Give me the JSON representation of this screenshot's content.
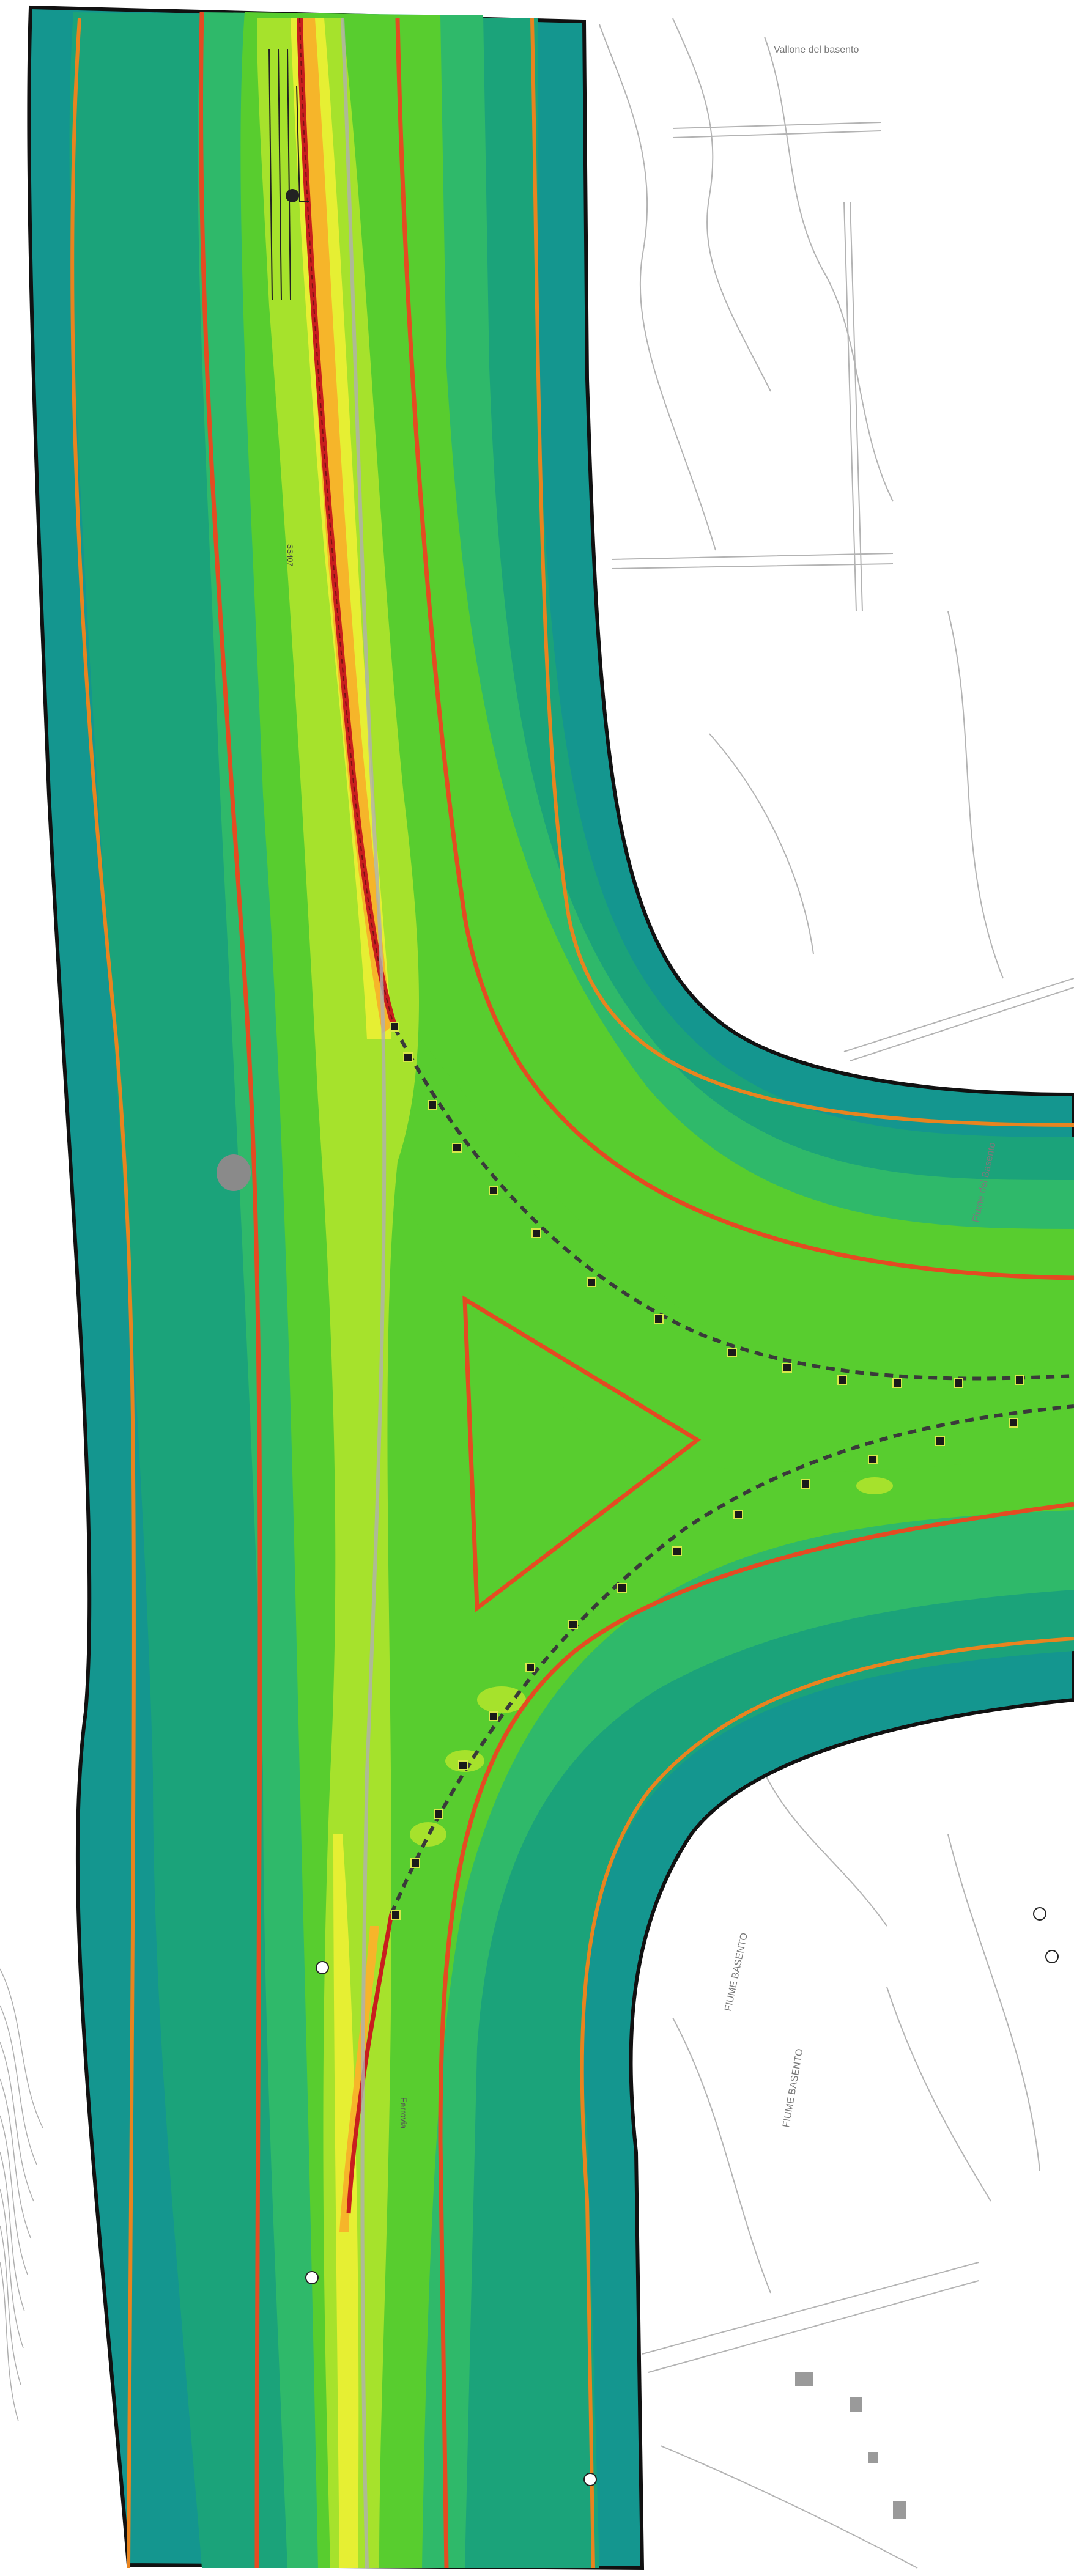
{
  "labels": {
    "vallone": "Vallone del basento",
    "fiume_1": "FIUME BASENTO",
    "fiume_2": "FIUME BASENTO",
    "fiume_3": "Fiume del Basento",
    "road_code": "SS407",
    "rail_label": "Ferrovia"
  },
  "colors": {
    "background": "#ffffff",
    "band_outer": "#14968f",
    "band_2": "#1ba37a",
    "band_3": "#2fb96a",
    "band_4": "#58cd2f",
    "band_5": "#a6e22c",
    "band_6": "#e6ef33",
    "band_7": "#f6b52a",
    "contour_orange": "#e8841f",
    "contour_red": "#e44b22",
    "boundary": "#111111",
    "base_lines": "#9a9a9a",
    "rail_marker": "#222222"
  },
  "legend_note": ""
}
